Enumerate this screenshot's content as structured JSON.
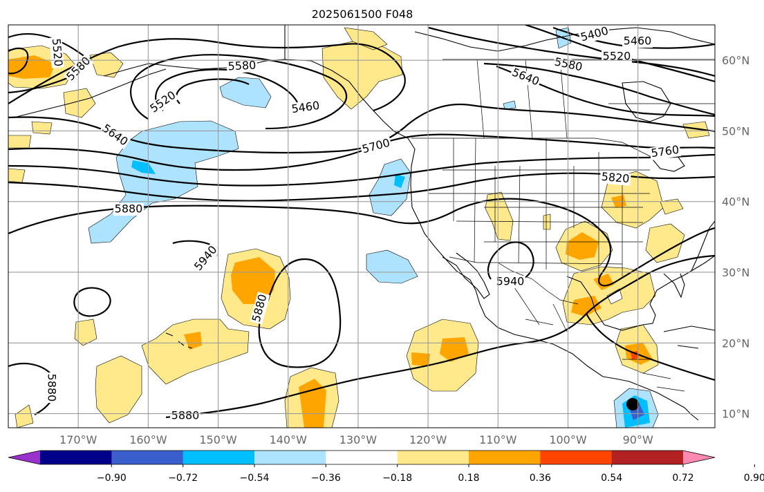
{
  "title": "2025061500 F048",
  "map": {
    "lon_range": [
      -180,
      -79
    ],
    "lat_range": [
      8,
      65
    ],
    "lon_ticks": [
      {
        "lon": -170,
        "label": "170°W"
      },
      {
        "lon": -160,
        "label": "160°W"
      },
      {
        "lon": -150,
        "label": "150°W"
      },
      {
        "lon": -140,
        "label": "140°W"
      },
      {
        "lon": -130,
        "label": "130°W"
      },
      {
        "lon": -120,
        "label": "120°W"
      },
      {
        "lon": -110,
        "label": "110°W"
      },
      {
        "lon": -100,
        "label": "100°W"
      },
      {
        "lon": -90,
        "label": "90°W"
      }
    ],
    "lat_ticks": [
      {
        "lat": 10,
        "label": "10°N"
      },
      {
        "lat": 20,
        "label": "20°N"
      },
      {
        "lat": 30,
        "label": "30°N"
      },
      {
        "lat": 40,
        "label": "40°N"
      },
      {
        "lat": 50,
        "label": "50°N"
      },
      {
        "lat": 60,
        "label": "60°N"
      }
    ],
    "contour_labels": [
      {
        "text": "5520"
      },
      {
        "text": "5580"
      },
      {
        "text": "5580"
      },
      {
        "text": "5520"
      },
      {
        "text": "5460"
      },
      {
        "text": "5640"
      },
      {
        "text": "5700"
      },
      {
        "text": "5880"
      },
      {
        "text": "5940"
      },
      {
        "text": "5880"
      },
      {
        "text": "5880"
      },
      {
        "text": "5880"
      },
      {
        "text": "5400"
      },
      {
        "text": "5460"
      },
      {
        "text": "5520"
      },
      {
        "text": "5580"
      },
      {
        "text": "5640"
      },
      {
        "text": "5760"
      },
      {
        "text": "5820"
      },
      {
        "text": "5940"
      }
    ]
  },
  "colorbar": {
    "colors": [
      "#9932cc",
      "#00008b",
      "#3a5fcd",
      "#00bfff",
      "#aee3ff",
      "#ffffff",
      "#ffe98a",
      "#ffa500",
      "#ff4500",
      "#b22222",
      "#ff89b0"
    ],
    "tick_values": [
      "−0.90",
      "−0.72",
      "−0.54",
      "−0.36",
      "−0.18",
      "0.18",
      "0.36",
      "0.54",
      "0.72",
      "0.90"
    ]
  }
}
